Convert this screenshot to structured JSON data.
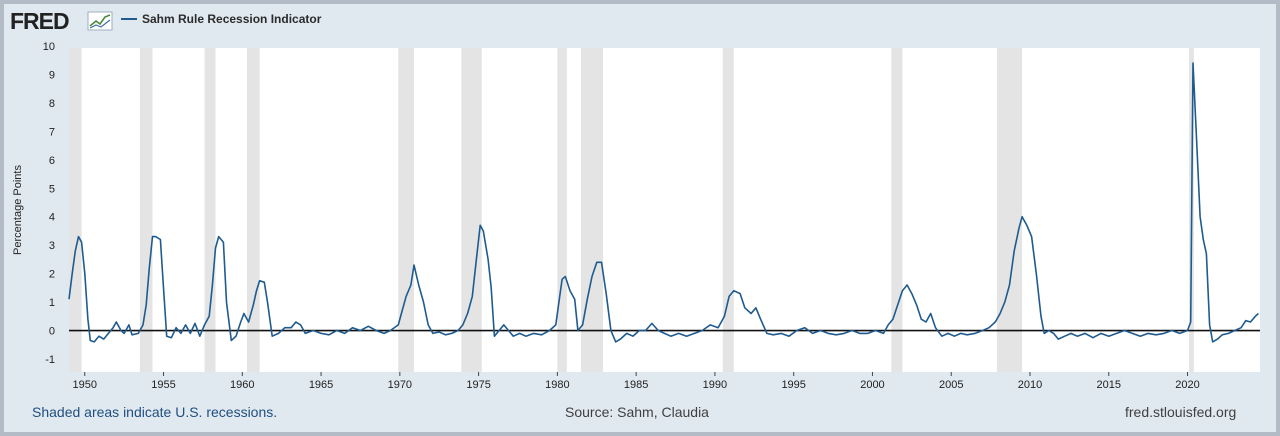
{
  "header": {
    "logo_text": "FRED",
    "legend_label": "Sahm Rule Recession Indicator",
    "series_color": "#1f5b8e"
  },
  "footer": {
    "note": "Shaded areas indicate U.S. recessions.",
    "source": "Source: Sahm, Claudia",
    "site": "fred.stlouisfed.org"
  },
  "chart_data": {
    "type": "line",
    "ylabel": "Percentage Points",
    "xlim": [
      1949.0,
      2024.6
    ],
    "ylim": [
      -1,
      10
    ],
    "yticks": [
      -1,
      0,
      1,
      2,
      3,
      4,
      5,
      6,
      7,
      8,
      9,
      10
    ],
    "xticks": [
      1950,
      1955,
      1960,
      1965,
      1970,
      1975,
      1980,
      1985,
      1990,
      1995,
      2000,
      2005,
      2010,
      2015,
      2020
    ],
    "grid": false,
    "zero_line": true,
    "legend_position": "top-left",
    "recessions": [
      [
        1948.9,
        1949.8
      ],
      [
        1953.5,
        1954.3
      ],
      [
        1957.6,
        1958.3
      ],
      [
        1960.3,
        1961.1
      ],
      [
        1969.9,
        1970.9
      ],
      [
        1973.9,
        1975.2
      ],
      [
        1980.0,
        1980.6
      ],
      [
        1981.5,
        1982.9
      ],
      [
        1990.5,
        1991.2
      ],
      [
        2001.2,
        2001.9
      ],
      [
        2007.9,
        2009.5
      ],
      [
        2020.1,
        2020.4
      ]
    ],
    "series": [
      {
        "name": "Sahm Rule Recession Indicator",
        "points": [
          [
            1949.0,
            1.1
          ],
          [
            1949.2,
            2.0
          ],
          [
            1949.4,
            2.8
          ],
          [
            1949.6,
            3.3
          ],
          [
            1949.8,
            3.1
          ],
          [
            1950.0,
            2.0
          ],
          [
            1950.2,
            0.4
          ],
          [
            1950.35,
            -0.35
          ],
          [
            1950.6,
            -0.4
          ],
          [
            1950.9,
            -0.2
          ],
          [
            1951.2,
            -0.3
          ],
          [
            1951.5,
            -0.1
          ],
          [
            1951.8,
            0.1
          ],
          [
            1952.0,
            0.3
          ],
          [
            1952.3,
            0.0
          ],
          [
            1952.5,
            -0.1
          ],
          [
            1952.8,
            0.2
          ],
          [
            1953.0,
            -0.15
          ],
          [
            1953.4,
            -0.1
          ],
          [
            1953.7,
            0.2
          ],
          [
            1953.9,
            0.9
          ],
          [
            1954.1,
            2.2
          ],
          [
            1954.3,
            3.3
          ],
          [
            1954.5,
            3.3
          ],
          [
            1954.8,
            3.2
          ],
          [
            1955.0,
            1.5
          ],
          [
            1955.2,
            -0.2
          ],
          [
            1955.5,
            -0.25
          ],
          [
            1955.8,
            0.1
          ],
          [
            1956.1,
            -0.1
          ],
          [
            1956.4,
            0.2
          ],
          [
            1956.7,
            -0.1
          ],
          [
            1957.0,
            0.25
          ],
          [
            1957.3,
            -0.2
          ],
          [
            1957.6,
            0.2
          ],
          [
            1957.9,
            0.5
          ],
          [
            1958.1,
            1.6
          ],
          [
            1958.3,
            2.9
          ],
          [
            1958.5,
            3.3
          ],
          [
            1958.8,
            3.1
          ],
          [
            1959.0,
            1.0
          ],
          [
            1959.3,
            -0.35
          ],
          [
            1959.6,
            -0.2
          ],
          [
            1959.9,
            0.3
          ],
          [
            1960.1,
            0.6
          ],
          [
            1960.4,
            0.3
          ],
          [
            1960.7,
            0.9
          ],
          [
            1960.9,
            1.4
          ],
          [
            1961.1,
            1.75
          ],
          [
            1961.4,
            1.7
          ],
          [
            1961.6,
            1.0
          ],
          [
            1961.9,
            -0.2
          ],
          [
            1962.3,
            -0.1
          ],
          [
            1962.7,
            0.1
          ],
          [
            1963.1,
            0.1
          ],
          [
            1963.4,
            0.3
          ],
          [
            1963.7,
            0.2
          ],
          [
            1964.0,
            -0.1
          ],
          [
            1964.5,
            0.0
          ],
          [
            1965.0,
            -0.1
          ],
          [
            1965.5,
            -0.15
          ],
          [
            1966.0,
            0.0
          ],
          [
            1966.5,
            -0.1
          ],
          [
            1967.0,
            0.1
          ],
          [
            1967.5,
            0.0
          ],
          [
            1968.0,
            0.15
          ],
          [
            1968.5,
            0.0
          ],
          [
            1969.0,
            -0.1
          ],
          [
            1969.4,
            0.0
          ],
          [
            1969.9,
            0.2
          ],
          [
            1970.1,
            0.6
          ],
          [
            1970.4,
            1.2
          ],
          [
            1970.7,
            1.6
          ],
          [
            1970.9,
            2.3
          ],
          [
            1971.2,
            1.6
          ],
          [
            1971.5,
            1.0
          ],
          [
            1971.8,
            0.2
          ],
          [
            1972.1,
            -0.1
          ],
          [
            1972.5,
            -0.05
          ],
          [
            1972.9,
            -0.15
          ],
          [
            1973.3,
            -0.1
          ],
          [
            1973.7,
            0.0
          ],
          [
            1974.0,
            0.2
          ],
          [
            1974.3,
            0.6
          ],
          [
            1974.6,
            1.2
          ],
          [
            1974.9,
            2.7
          ],
          [
            1975.1,
            3.7
          ],
          [
            1975.3,
            3.5
          ],
          [
            1975.6,
            2.5
          ],
          [
            1975.8,
            1.5
          ],
          [
            1976.0,
            -0.2
          ],
          [
            1976.3,
            0.0
          ],
          [
            1976.6,
            0.2
          ],
          [
            1976.9,
            0.0
          ],
          [
            1977.2,
            -0.2
          ],
          [
            1977.6,
            -0.1
          ],
          [
            1978.0,
            -0.2
          ],
          [
            1978.5,
            -0.1
          ],
          [
            1979.0,
            -0.15
          ],
          [
            1979.5,
            0.0
          ],
          [
            1979.9,
            0.2
          ],
          [
            1980.1,
            1.0
          ],
          [
            1980.3,
            1.8
          ],
          [
            1980.5,
            1.9
          ],
          [
            1980.8,
            1.4
          ],
          [
            1981.1,
            1.1
          ],
          [
            1981.3,
            0.0
          ],
          [
            1981.6,
            0.2
          ],
          [
            1981.9,
            1.1
          ],
          [
            1982.2,
            1.9
          ],
          [
            1982.5,
            2.4
          ],
          [
            1982.8,
            2.4
          ],
          [
            1983.1,
            1.3
          ],
          [
            1983.4,
            0.0
          ],
          [
            1983.7,
            -0.4
          ],
          [
            1984.0,
            -0.3
          ],
          [
            1984.4,
            -0.1
          ],
          [
            1984.8,
            -0.2
          ],
          [
            1985.2,
            0.0
          ],
          [
            1985.6,
            0.0
          ],
          [
            1986.0,
            0.25
          ],
          [
            1986.4,
            0.0
          ],
          [
            1986.8,
            -0.1
          ],
          [
            1987.2,
            -0.2
          ],
          [
            1987.7,
            -0.1
          ],
          [
            1988.2,
            -0.2
          ],
          [
            1988.7,
            -0.1
          ],
          [
            1989.2,
            0.0
          ],
          [
            1989.7,
            0.2
          ],
          [
            1990.2,
            0.1
          ],
          [
            1990.6,
            0.5
          ],
          [
            1990.9,
            1.2
          ],
          [
            1991.2,
            1.4
          ],
          [
            1991.6,
            1.3
          ],
          [
            1991.9,
            0.8
          ],
          [
            1992.3,
            0.6
          ],
          [
            1992.6,
            0.8
          ],
          [
            1992.9,
            0.4
          ],
          [
            1993.3,
            -0.1
          ],
          [
            1993.7,
            -0.15
          ],
          [
            1994.2,
            -0.1
          ],
          [
            1994.7,
            -0.2
          ],
          [
            1995.2,
            0.0
          ],
          [
            1995.7,
            0.1
          ],
          [
            1996.2,
            -0.1
          ],
          [
            1996.7,
            0.0
          ],
          [
            1997.2,
            -0.1
          ],
          [
            1997.7,
            -0.15
          ],
          [
            1998.2,
            -0.1
          ],
          [
            1998.7,
            0.0
          ],
          [
            1999.2,
            -0.1
          ],
          [
            1999.7,
            -0.1
          ],
          [
            2000.2,
            0.0
          ],
          [
            2000.7,
            -0.1
          ],
          [
            2001.0,
            0.2
          ],
          [
            2001.3,
            0.4
          ],
          [
            2001.6,
            0.9
          ],
          [
            2001.9,
            1.4
          ],
          [
            2002.2,
            1.6
          ],
          [
            2002.5,
            1.3
          ],
          [
            2002.8,
            0.9
          ],
          [
            2003.1,
            0.4
          ],
          [
            2003.4,
            0.3
          ],
          [
            2003.7,
            0.6
          ],
          [
            2004.0,
            0.1
          ],
          [
            2004.4,
            -0.2
          ],
          [
            2004.8,
            -0.1
          ],
          [
            2005.2,
            -0.2
          ],
          [
            2005.6,
            -0.1
          ],
          [
            2006.0,
            -0.15
          ],
          [
            2006.5,
            -0.1
          ],
          [
            2007.0,
            0.0
          ],
          [
            2007.4,
            0.1
          ],
          [
            2007.8,
            0.3
          ],
          [
            2008.1,
            0.6
          ],
          [
            2008.4,
            1.0
          ],
          [
            2008.7,
            1.6
          ],
          [
            2009.0,
            2.8
          ],
          [
            2009.3,
            3.6
          ],
          [
            2009.5,
            4.0
          ],
          [
            2009.8,
            3.7
          ],
          [
            2010.1,
            3.3
          ],
          [
            2010.4,
            2.0
          ],
          [
            2010.7,
            0.5
          ],
          [
            2010.9,
            -0.1
          ],
          [
            2011.2,
            0.0
          ],
          [
            2011.5,
            -0.1
          ],
          [
            2011.8,
            -0.3
          ],
          [
            2012.2,
            -0.2
          ],
          [
            2012.6,
            -0.1
          ],
          [
            2013.0,
            -0.2
          ],
          [
            2013.5,
            -0.1
          ],
          [
            2014.0,
            -0.25
          ],
          [
            2014.5,
            -0.1
          ],
          [
            2015.0,
            -0.2
          ],
          [
            2015.5,
            -0.1
          ],
          [
            2016.0,
            0.0
          ],
          [
            2016.5,
            -0.1
          ],
          [
            2017.0,
            -0.2
          ],
          [
            2017.5,
            -0.1
          ],
          [
            2018.0,
            -0.15
          ],
          [
            2018.5,
            -0.1
          ],
          [
            2019.0,
            0.0
          ],
          [
            2019.5,
            -0.1
          ],
          [
            2020.0,
            0.0
          ],
          [
            2020.2,
            0.3
          ],
          [
            2020.35,
            9.4
          ],
          [
            2020.55,
            7.0
          ],
          [
            2020.8,
            4.0
          ],
          [
            2021.0,
            3.2
          ],
          [
            2021.2,
            2.7
          ],
          [
            2021.4,
            0.2
          ],
          [
            2021.6,
            -0.4
          ],
          [
            2021.9,
            -0.3
          ],
          [
            2022.2,
            -0.15
          ],
          [
            2022.6,
            -0.1
          ],
          [
            2023.0,
            0.0
          ],
          [
            2023.4,
            0.1
          ],
          [
            2023.7,
            0.35
          ],
          [
            2024.0,
            0.3
          ],
          [
            2024.3,
            0.5
          ],
          [
            2024.5,
            0.6
          ]
        ]
      }
    ]
  }
}
